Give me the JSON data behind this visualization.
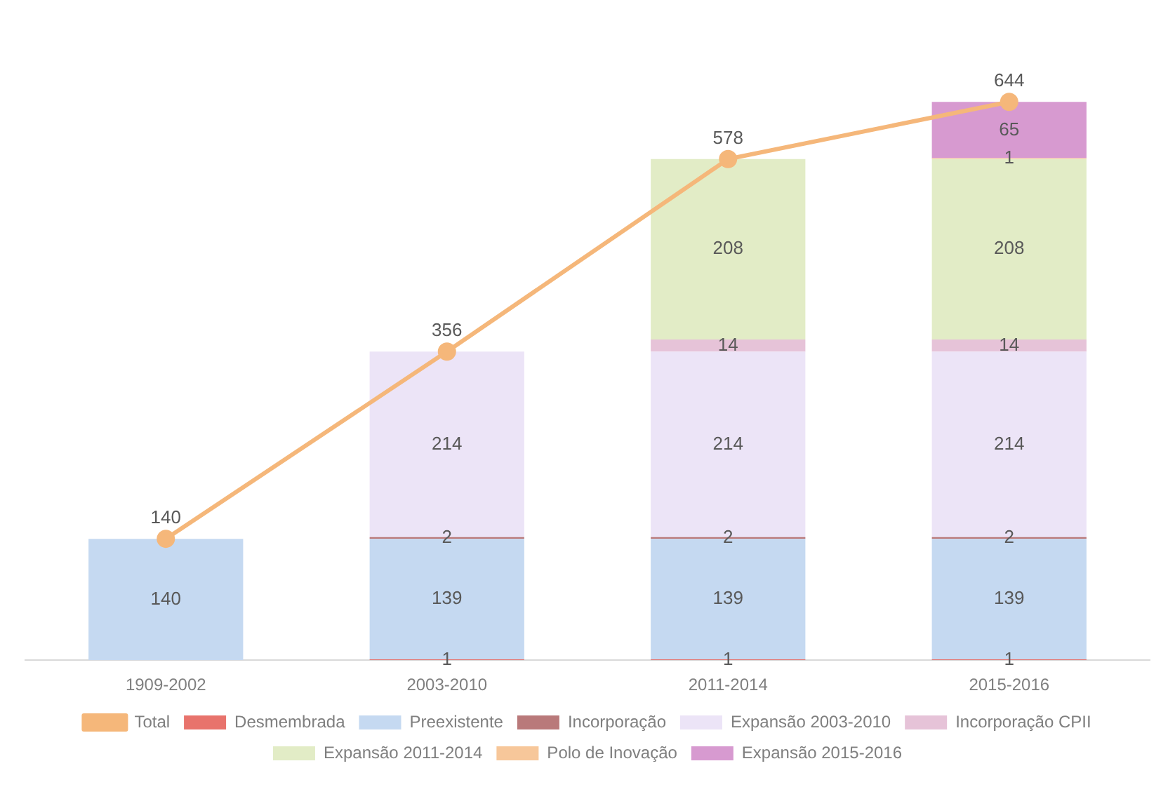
{
  "chart_data": {
    "type": "bar",
    "stacked": true,
    "data_labels": true,
    "legend": "bottom",
    "grid": false,
    "tick_labels": "x",
    "categories": [
      "1909-2002",
      "2003-2010",
      "2011-2014",
      "2015-2016"
    ],
    "series": [
      {
        "name": "Desmembrada",
        "color": "#e8736c",
        "values": [
          null,
          1,
          1,
          1
        ]
      },
      {
        "name": "Preexistente",
        "color": "#c5d9f1",
        "values": [
          140,
          139,
          139,
          139
        ]
      },
      {
        "name": "Incorporação",
        "color": "#b9797a",
        "values": [
          null,
          2,
          2,
          2
        ]
      },
      {
        "name": "Expansão 2003-2010",
        "color": "#ece4f7",
        "values": [
          null,
          214,
          214,
          214
        ]
      },
      {
        "name": "Incorporação CPII",
        "color": "#e6c3d8",
        "values": [
          null,
          null,
          14,
          14
        ]
      },
      {
        "name": "Expansão 2011-2014",
        "color": "#e2ecc6",
        "values": [
          null,
          null,
          208,
          208
        ]
      },
      {
        "name": "Polo de Inovação",
        "color": "#f7c79a",
        "values": [
          null,
          null,
          null,
          1
        ]
      },
      {
        "name": "Expansão 2015-2016",
        "color": "#d79ad0",
        "values": [
          null,
          null,
          null,
          65
        ]
      },
      {
        "name": "Total",
        "type": "line",
        "color": "#f5b77a",
        "marker": "circle",
        "values": [
          140,
          356,
          578,
          644
        ]
      }
    ]
  }
}
